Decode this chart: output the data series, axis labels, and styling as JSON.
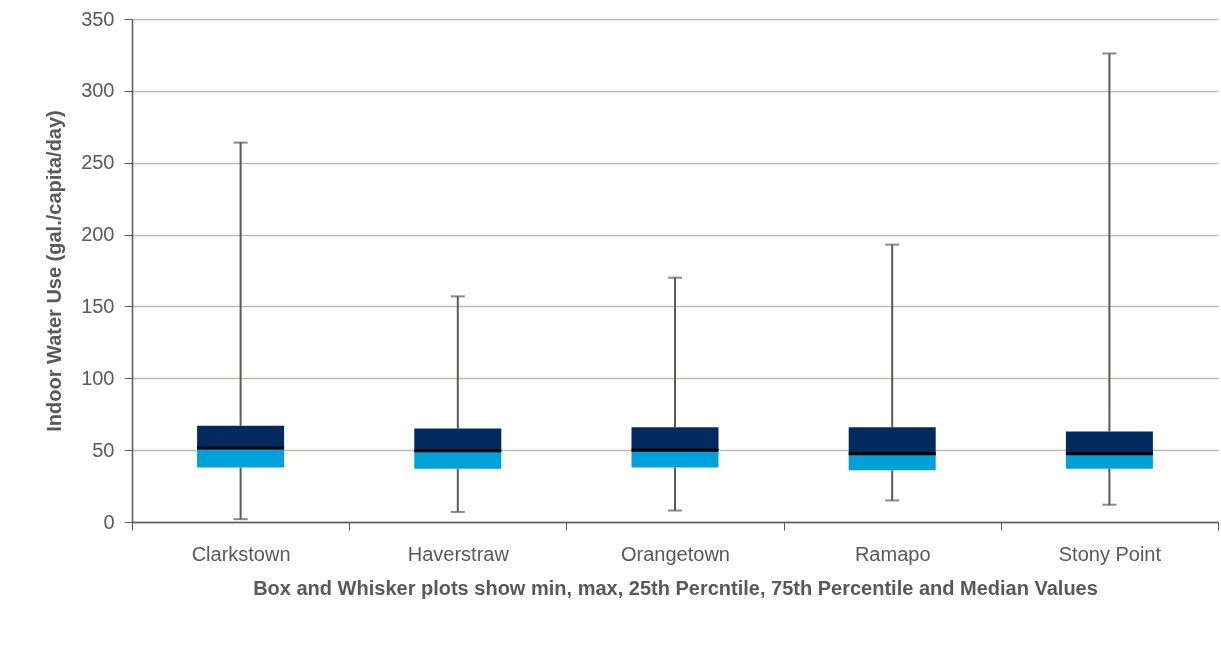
{
  "chart_data": {
    "type": "box",
    "ylabel": "Indoor Water Use (gal./capita/day)",
    "xlabel": "Box and Whisker plots show min, max, 25th Percntile, 75th Percentile and Median Values",
    "categories": [
      "Clarkstown",
      "Haverstraw",
      "Orangetown",
      "Ramapo",
      "Stony Point"
    ],
    "series": [
      {
        "color": "#012a5e",
        "boxes": [
          {
            "low": 2,
            "q1": 38,
            "median": 51.5,
            "q3": 67,
            "high": 264
          },
          {
            "low": 7,
            "q1": 37,
            "median": 49.5,
            "q3": 65,
            "high": 157
          },
          {
            "low": 8,
            "q1": 38,
            "median": 50,
            "q3": 66,
            "high": 170
          },
          {
            "low": 15,
            "q1": 36,
            "median": 47.5,
            "q3": 66,
            "high": 193
          },
          {
            "low": 12,
            "q1": 37,
            "median": 47.5,
            "q3": 63,
            "high": 326
          }
        ]
      }
    ],
    "ylim": [
      0,
      350
    ],
    "yticks": [
      0,
      50,
      100,
      150,
      200,
      250,
      300,
      350
    ],
    "grid": "y"
  }
}
